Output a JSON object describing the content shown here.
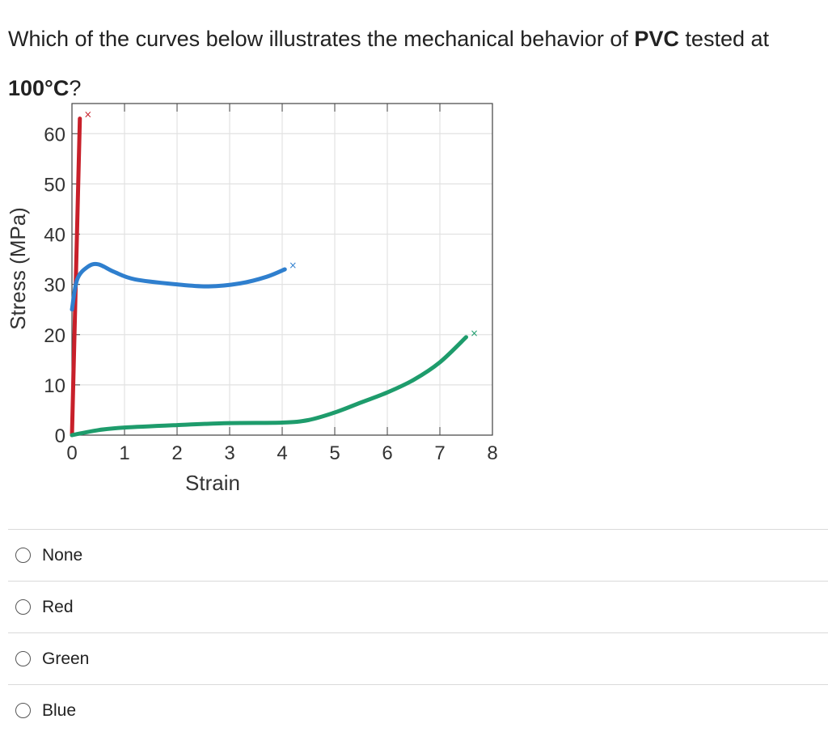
{
  "question": {
    "prefix": "Which of the curves below illustrates the mechanical behavior of ",
    "material": "PVC",
    "middle": " tested at",
    "temperature": "100°C",
    "suffix": "?"
  },
  "chart_data": {
    "type": "line",
    "xlabel": "Strain",
    "ylabel": "Stress (MPa)",
    "xlim": [
      0,
      8
    ],
    "ylim": [
      0,
      66
    ],
    "x_ticks": [
      "0",
      "1",
      "2",
      "3",
      "4",
      "5",
      "6",
      "7",
      "8"
    ],
    "y_ticks": [
      "0",
      "10",
      "20",
      "30",
      "40",
      "50",
      "60"
    ],
    "grid": true,
    "series": [
      {
        "color": "#c8202a",
        "break_marker": "×",
        "points": [
          [
            0,
            0
          ],
          [
            0.15,
            63
          ]
        ]
      },
      {
        "color": "#2f7fce",
        "break_marker": "×",
        "points": [
          [
            0,
            25
          ],
          [
            0.1,
            31
          ],
          [
            0.3,
            33.5
          ],
          [
            0.5,
            34
          ],
          [
            0.8,
            32.5
          ],
          [
            1.2,
            31
          ],
          [
            2,
            30
          ],
          [
            2.6,
            29.6
          ],
          [
            3.2,
            30.2
          ],
          [
            3.7,
            31.5
          ],
          [
            4.05,
            33
          ]
        ]
      },
      {
        "color": "#1e9c6c",
        "break_marker": "×",
        "points": [
          [
            0,
            0
          ],
          [
            0.5,
            1
          ],
          [
            1,
            1.5
          ],
          [
            2,
            2
          ],
          [
            3,
            2.4
          ],
          [
            4,
            2.5
          ],
          [
            4.5,
            3
          ],
          [
            5,
            4.5
          ],
          [
            5.5,
            6.5
          ],
          [
            6,
            8.5
          ],
          [
            6.5,
            11
          ],
          [
            7,
            14.5
          ],
          [
            7.5,
            19.5
          ]
        ]
      }
    ]
  },
  "options": [
    {
      "label": "None"
    },
    {
      "label": "Red"
    },
    {
      "label": "Green"
    },
    {
      "label": "Blue"
    }
  ]
}
